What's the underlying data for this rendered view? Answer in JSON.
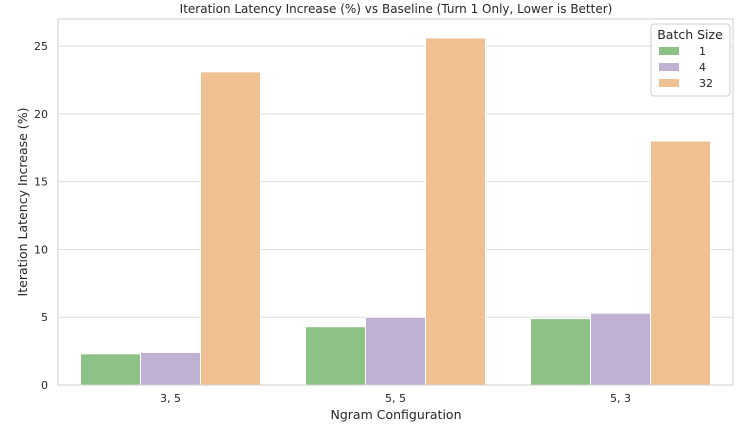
{
  "chart_data": {
    "type": "bar",
    "title": "Iteration Latency Increase (%) vs Baseline (Turn 1 Only, Lower is Better)",
    "xlabel": "Ngram Configuration",
    "ylabel": "Iteration Latency Increase (%)",
    "categories": [
      "3, 5",
      "5, 5",
      "5, 3"
    ],
    "ylim": [
      0,
      27
    ],
    "yticks": [
      0,
      5,
      10,
      15,
      20,
      25
    ],
    "grid": true,
    "legend": {
      "title": "Batch Size",
      "position": "top-right"
    },
    "series": [
      {
        "name": "1",
        "color": "#8cc286",
        "values": [
          2.3,
          4.3,
          4.9
        ]
      },
      {
        "name": "4",
        "color": "#c0b1d3",
        "values": [
          2.4,
          5.0,
          5.3
        ]
      },
      {
        "name": "32",
        "color": "#eec092",
        "values": [
          23.1,
          25.6,
          18.0
        ]
      }
    ]
  }
}
